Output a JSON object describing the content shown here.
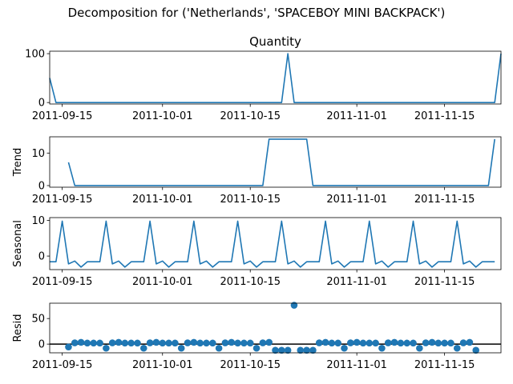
{
  "figure": {
    "suptitle": "Decomposition for ('Netherlands', 'SPACEBOY MINI BACKPACK')"
  },
  "colors": {
    "series": "#1f77b4",
    "axes": "#000000",
    "zero_line": "#000000"
  },
  "chart_data": [
    {
      "id": "quantity",
      "type": "line",
      "title": "Quantity",
      "ylabel": "",
      "x_start": "2011-09-13",
      "x_end": "2011-11-24",
      "xlim": [
        "2011-09-13",
        "2011-11-24"
      ],
      "xticks": [
        "2011-09-15",
        "2011-10-01",
        "2011-10-15",
        "2011-11-01",
        "2011-11-15"
      ],
      "ylim": [
        -3,
        105
      ],
      "yticks": [
        0,
        100
      ],
      "x": [
        "2011-09-13",
        "2011-09-14",
        "2011-10-20",
        "2011-10-21",
        "2011-10-22",
        "2011-11-23",
        "2011-11-24"
      ],
      "values": [
        50,
        0,
        0,
        100,
        0,
        0,
        100
      ]
    },
    {
      "id": "trend",
      "type": "line",
      "title": "",
      "ylabel": "Trend",
      "xlim": [
        "2011-09-13",
        "2011-11-24"
      ],
      "xticks": [
        "2011-09-15",
        "2011-10-01",
        "2011-10-15",
        "2011-11-01",
        "2011-11-15"
      ],
      "ylim": [
        -0.5,
        15
      ],
      "yticks": [
        0,
        10
      ],
      "x": [
        "2011-09-16",
        "2011-09-17",
        "2011-10-17",
        "2011-10-18",
        "2011-10-24",
        "2011-10-25",
        "2011-11-22",
        "2011-11-23"
      ],
      "values": [
        7.14,
        0,
        0,
        14.29,
        14.29,
        0,
        0,
        14.29
      ]
    },
    {
      "id": "seasonal",
      "type": "line",
      "title": "",
      "ylabel": "Seasonal",
      "xlim": [
        "2011-09-13",
        "2011-11-24"
      ],
      "xticks": [
        "2011-09-15",
        "2011-10-01",
        "2011-10-15",
        "2011-11-01",
        "2011-11-15"
      ],
      "ylim": [
        -3.8,
        10.8
      ],
      "yticks": [
        0,
        10
      ],
      "weekly_pattern": [
        9.8,
        -2.2,
        -1.4,
        -3.1,
        -1.6,
        -1.6,
        -1.6
      ],
      "x_start": "2011-09-13",
      "values": [
        -1.6,
        -1.6,
        9.8,
        -2.2,
        -1.4,
        -3.1,
        -1.6,
        -1.6,
        -1.6,
        9.8,
        -2.2,
        -1.4,
        -3.1,
        -1.6,
        -1.6,
        -1.6,
        9.8,
        -2.2,
        -1.4,
        -3.1,
        -1.6,
        -1.6,
        -1.6,
        9.8,
        -2.2,
        -1.4,
        -3.1,
        -1.6,
        -1.6,
        -1.6,
        9.8,
        -2.2,
        -1.4,
        -3.1,
        -1.6,
        -1.6,
        -1.6,
        9.8,
        -2.2,
        -1.4,
        -3.1,
        -1.6,
        -1.6,
        -1.6,
        9.8,
        -2.2,
        -1.4,
        -3.1,
        -1.6,
        -1.6,
        -1.6,
        9.8,
        -2.2,
        -1.4,
        -3.1,
        -1.6,
        -1.6,
        -1.6,
        9.8,
        -2.2,
        -1.4,
        -3.1,
        -1.6,
        -1.6,
        -1.6,
        9.8,
        -2.2,
        -1.4,
        -3.1,
        -1.6,
        -1.6,
        -1.6
      ]
    },
    {
      "id": "resid",
      "type": "scatter",
      "title": "",
      "ylabel": "Resid",
      "xlim": [
        "2011-09-13",
        "2011-11-24"
      ],
      "xticks": [
        "2011-09-15",
        "2011-10-01",
        "2011-10-15",
        "2011-11-01",
        "2011-11-15"
      ],
      "ylim": [
        -17,
        80
      ],
      "yticks": [
        0,
        50
      ],
      "zero_line": true,
      "x_start": "2011-09-16",
      "values": [
        -5.5,
        2.5,
        3.5,
        2,
        2,
        2,
        -8,
        2.5,
        3.5,
        2,
        2,
        2,
        -8,
        2.5,
        3.5,
        2,
        2,
        2,
        -8,
        2.5,
        3.5,
        2,
        2,
        2,
        -8,
        2.5,
        3.5,
        2,
        2,
        2,
        -8,
        2.5,
        3.5,
        -12,
        -12,
        -12,
        76,
        -12,
        -12,
        -12,
        2.5,
        3.5,
        2,
        2,
        -8,
        2.5,
        3.5,
        2,
        2,
        2,
        -8,
        2.5,
        3.5,
        2,
        2,
        2,
        -8,
        2.5,
        3.5,
        2,
        2,
        2,
        -8,
        2.5,
        3.5,
        -12
      ]
    }
  ]
}
